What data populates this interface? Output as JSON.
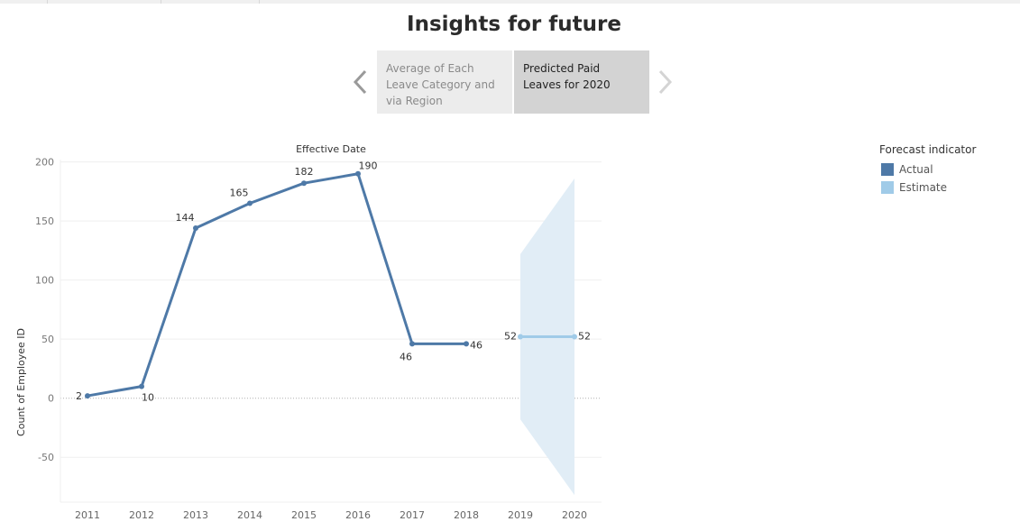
{
  "page": {
    "title": "Insights for future"
  },
  "story": {
    "points": [
      {
        "label": "Average of Each Leave Category and via Region"
      },
      {
        "label": "Predicted Paid Leaves for 2020"
      }
    ]
  },
  "legend": {
    "title": "Forecast indicator",
    "items": [
      {
        "label": "Actual",
        "color": "#4e79a7"
      },
      {
        "label": "Estimate",
        "color": "#a0cbe8"
      }
    ]
  },
  "chart_data": {
    "type": "line",
    "title": "Effective Date",
    "xlabel": "",
    "ylabel": "Count of Employee ID",
    "categories": [
      "2011",
      "2012",
      "2013",
      "2014",
      "2015",
      "2016",
      "2017",
      "2018",
      "2019",
      "2020"
    ],
    "ylim": [
      -88,
      202
    ],
    "yticks": [
      -50,
      0,
      50,
      100,
      150,
      200
    ],
    "grid": true,
    "legend_position": "right",
    "series": [
      {
        "name": "Actual",
        "color": "#4e79a7",
        "x": [
          "2011",
          "2012",
          "2013",
          "2014",
          "2015",
          "2016",
          "2017",
          "2018"
        ],
        "values": [
          2,
          10,
          144,
          165,
          182,
          190,
          46,
          46
        ]
      },
      {
        "name": "Estimate",
        "color": "#a0cbe8",
        "x": [
          "2019",
          "2020"
        ],
        "values": [
          52,
          52
        ]
      }
    ],
    "estimate_band": {
      "x": [
        "2019",
        "2020"
      ],
      "upper": [
        122,
        186
      ],
      "lower": [
        -18,
        -82
      ],
      "color": "#e1edf6"
    }
  }
}
